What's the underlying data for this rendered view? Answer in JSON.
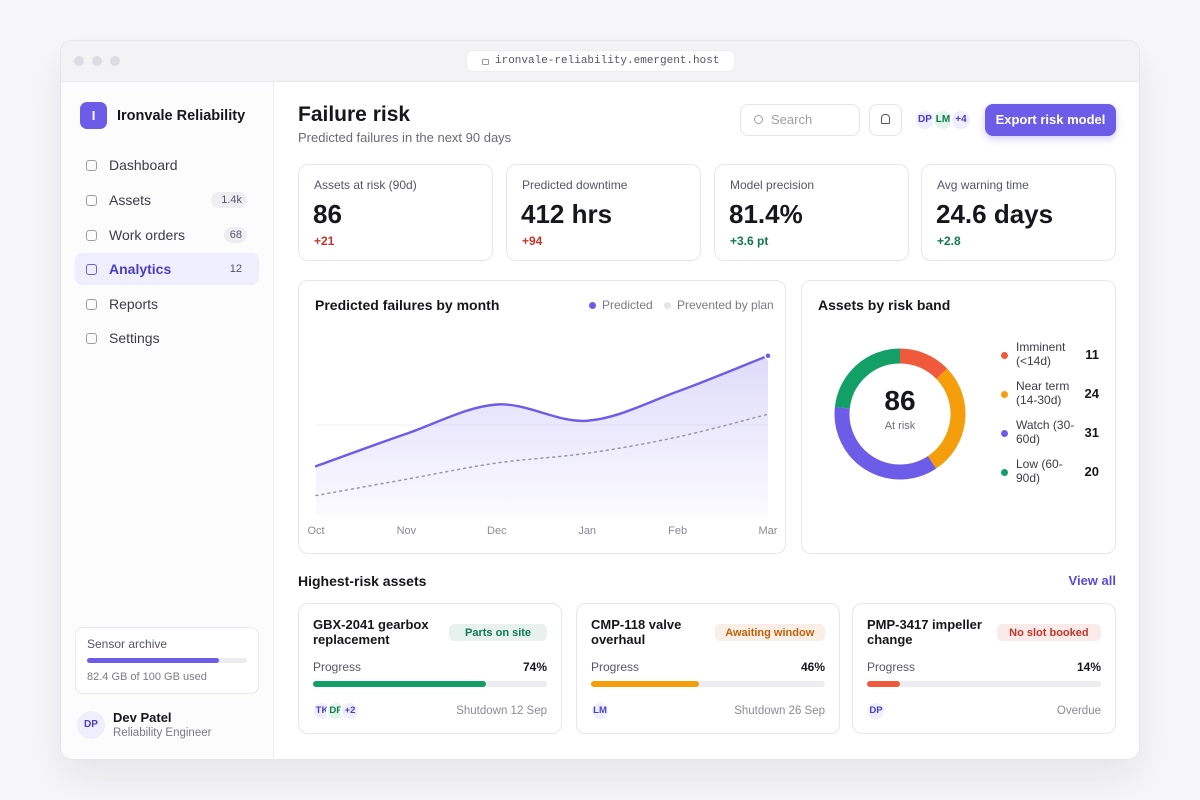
{
  "browser": {
    "url": "ironvale-reliability.emergent.host"
  },
  "sidebar": {
    "brand": {
      "initial": "I",
      "name": "Ironvale Reliability"
    },
    "nav": [
      {
        "label": "Dashboard"
      },
      {
        "label": "Assets",
        "badge": "1.4k"
      },
      {
        "label": "Work orders",
        "badge": "68"
      },
      {
        "label": "Analytics",
        "badge": "12",
        "selected": true
      },
      {
        "label": "Reports"
      },
      {
        "label": "Settings"
      }
    ],
    "storage": {
      "title": "Sensor archive",
      "usage_text": "82.4 GB of 100 GB used",
      "used_gb": 82.4,
      "total_gb": 100
    },
    "user": {
      "initials": "DP",
      "name": "Dev Patel",
      "role": "Reliability Engineer"
    }
  },
  "header": {
    "title": "Failure risk",
    "subtitle": "Predicted failures in the next 90 days",
    "search_placeholder": "Search",
    "avatars": [
      "DP",
      "LM",
      "+4"
    ],
    "export_button": "Export risk model"
  },
  "kpis": [
    {
      "label": "Assets at risk (90d)",
      "value": "86",
      "delta": "+21",
      "delta_color": "#c2362b"
    },
    {
      "label": "Predicted downtime",
      "value": "412 hrs",
      "delta": "+94",
      "delta_color": "#c2362b"
    },
    {
      "label": "Model precision",
      "value": "81.4%",
      "delta": "+3.6 pt",
      "delta_color": "#0f7a4f"
    },
    {
      "label": "Avg warning time",
      "value": "24.6 days",
      "delta": "+2.8",
      "delta_color": "#0f7a4f"
    }
  ],
  "chart_data": [
    {
      "type": "line",
      "title": "Predicted failures by month",
      "categories": [
        "Oct",
        "Nov",
        "Dec",
        "Jan",
        "Feb",
        "Mar"
      ],
      "series": [
        {
          "name": "Predicted",
          "color": "#6c5ce7",
          "values": [
            15,
            25,
            34,
            29,
            38,
            49
          ],
          "area": true
        },
        {
          "name": "Prevented by plan",
          "color": "#9b99a8",
          "values": [
            6,
            11,
            16,
            19,
            24,
            31
          ],
          "dashed": true
        }
      ],
      "ylim": [
        0,
        60
      ]
    },
    {
      "type": "donut",
      "title": "Assets by risk band",
      "categories": [
        "Imminent (<14d)",
        "Near term (14-30d)",
        "Watch (30-60d)",
        "Low (60-90d)"
      ],
      "values": [
        11,
        24,
        31,
        20
      ],
      "colors": [
        "#ef5a3c",
        "#f59e0b",
        "#6c5ce7",
        "#12a067"
      ],
      "total": 86,
      "center_label": "At risk"
    }
  ],
  "assets": {
    "title": "Highest-risk assets",
    "link": "View all",
    "cards": [
      {
        "name": "GBX-2041 gearbox replacement",
        "status": "Parts on site",
        "status_color": "#0f7a4f",
        "progress_label": "Progress",
        "progress": 74,
        "progress_text": "74%",
        "color": "#12a067",
        "avatars": [
          "TK",
          "DP",
          "+2"
        ],
        "footer": "Shutdown 12 Sep"
      },
      {
        "name": "CMP-118 valve overhaul",
        "status": "Awaiting window",
        "status_color": "#c2610b",
        "progress_label": "Progress",
        "progress": 46,
        "progress_text": "46%",
        "color": "#f59e0b",
        "avatars": [
          "LM"
        ],
        "footer": "Shutdown 26 Sep"
      },
      {
        "name": "PMP-3417 impeller change",
        "status": "No slot booked",
        "status_color": "#c2362b",
        "progress_label": "Progress",
        "progress": 14,
        "progress_text": "14%",
        "color": "#ef5a3c",
        "avatars": [
          "DP"
        ],
        "footer": "Overdue"
      }
    ]
  }
}
